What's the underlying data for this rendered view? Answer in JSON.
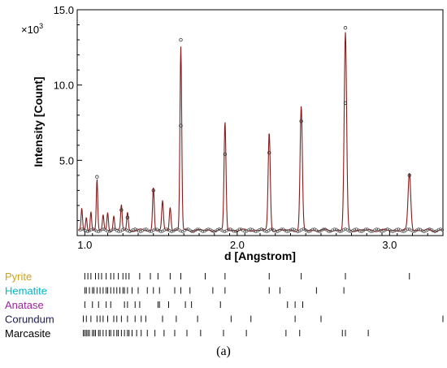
{
  "panel_label": "(a)",
  "chart_data": {
    "type": "line",
    "xlabel": "d [Angstrom]",
    "ylabel": "Intensity [Count]",
    "y_multiplier": "×10",
    "y_multiplier_exp": "3",
    "xlim": [
      0.95,
      3.35
    ],
    "ylim": [
      0,
      15.0
    ],
    "x_ticks": [
      1.0,
      2.0,
      3.0
    ],
    "x_tick_labels": [
      "1.0",
      "2.0",
      "3.0"
    ],
    "y_ticks": [
      5.0,
      10.0,
      15.0
    ],
    "y_tick_labels": [
      "5.0",
      "10.0",
      "15.0"
    ],
    "grid": false,
    "series": [
      {
        "role": "calculated",
        "color": "#8b1a1a",
        "peaks": [
          {
            "x": 0.98,
            "y": 1.4
          },
          {
            "x": 1.01,
            "y": 0.9
          },
          {
            "x": 1.04,
            "y": 1.3
          },
          {
            "x": 1.08,
            "y": 3.4
          },
          {
            "x": 1.12,
            "y": 1.0
          },
          {
            "x": 1.15,
            "y": 1.2
          },
          {
            "x": 1.19,
            "y": 1.0
          },
          {
            "x": 1.24,
            "y": 1.7
          },
          {
            "x": 1.28,
            "y": 1.2
          },
          {
            "x": 1.45,
            "y": 2.9
          },
          {
            "x": 1.51,
            "y": 1.9
          },
          {
            "x": 1.56,
            "y": 1.6
          },
          {
            "x": 1.63,
            "y": 12.2
          },
          {
            "x": 1.92,
            "y": 7.2
          },
          {
            "x": 2.21,
            "y": 6.5
          },
          {
            "x": 2.42,
            "y": 8.2
          },
          {
            "x": 2.71,
            "y": 13.1
          },
          {
            "x": 3.13,
            "y": 3.8
          }
        ]
      },
      {
        "role": "observed",
        "color": "#000000",
        "points": [
          {
            "x": 1.08,
            "y": 3.9
          },
          {
            "x": 1.24,
            "y": 1.7
          },
          {
            "x": 1.28,
            "y": 1.2
          },
          {
            "x": 1.45,
            "y": 3.0
          },
          {
            "x": 1.63,
            "y": 13.0
          },
          {
            "x": 1.63,
            "y": 7.3
          },
          {
            "x": 1.92,
            "y": 5.4
          },
          {
            "x": 2.21,
            "y": 5.5
          },
          {
            "x": 2.42,
            "y": 7.6
          },
          {
            "x": 2.71,
            "y": 13.8
          },
          {
            "x": 2.71,
            "y": 8.8
          },
          {
            "x": 3.13,
            "y": 4.0
          }
        ]
      }
    ],
    "phases": [
      {
        "name": "Pyrite",
        "color": "#d4a017",
        "ticks": [
          1.0,
          1.02,
          1.04,
          1.07,
          1.09,
          1.11,
          1.14,
          1.17,
          1.19,
          1.22,
          1.25,
          1.27,
          1.29,
          1.36,
          1.43,
          1.48,
          1.56,
          1.63,
          1.79,
          1.92,
          2.21,
          2.42,
          2.71,
          3.13
        ]
      },
      {
        "name": "Hematite",
        "color": "#00b4c8",
        "ticks": [
          1.0,
          1.01,
          1.03,
          1.05,
          1.06,
          1.08,
          1.1,
          1.12,
          1.14,
          1.15,
          1.17,
          1.19,
          1.21,
          1.23,
          1.25,
          1.26,
          1.28,
          1.31,
          1.35,
          1.41,
          1.45,
          1.49,
          1.59,
          1.63,
          1.69,
          1.84,
          1.92,
          2.21,
          2.28,
          2.52,
          2.7
        ]
      },
      {
        "name": "Anatase",
        "color": "#a020a0",
        "ticks": [
          1.0,
          1.05,
          1.09,
          1.14,
          1.17,
          1.26,
          1.28,
          1.33,
          1.36,
          1.48,
          1.49,
          1.55,
          1.66,
          1.7,
          1.89,
          2.33,
          2.38,
          2.43
        ]
      },
      {
        "name": "Corundum",
        "color": "#1a1a4d",
        "ticks": [
          0.99,
          1.01,
          1.04,
          1.08,
          1.1,
          1.12,
          1.15,
          1.19,
          1.21,
          1.24,
          1.28,
          1.33,
          1.37,
          1.4,
          1.51,
          1.6,
          1.74,
          1.96,
          2.09,
          2.38,
          2.55,
          3.48
        ]
      },
      {
        "name": "Marcasite",
        "color": "#000000",
        "ticks": [
          0.99,
          1.0,
          1.01,
          1.02,
          1.03,
          1.05,
          1.06,
          1.07,
          1.09,
          1.1,
          1.12,
          1.14,
          1.16,
          1.17,
          1.19,
          1.21,
          1.22,
          1.24,
          1.26,
          1.28,
          1.29,
          1.31,
          1.34,
          1.37,
          1.41,
          1.46,
          1.52,
          1.59,
          1.67,
          1.76,
          1.91,
          2.06,
          2.32,
          2.41,
          2.69,
          2.71,
          2.86
        ]
      }
    ]
  }
}
